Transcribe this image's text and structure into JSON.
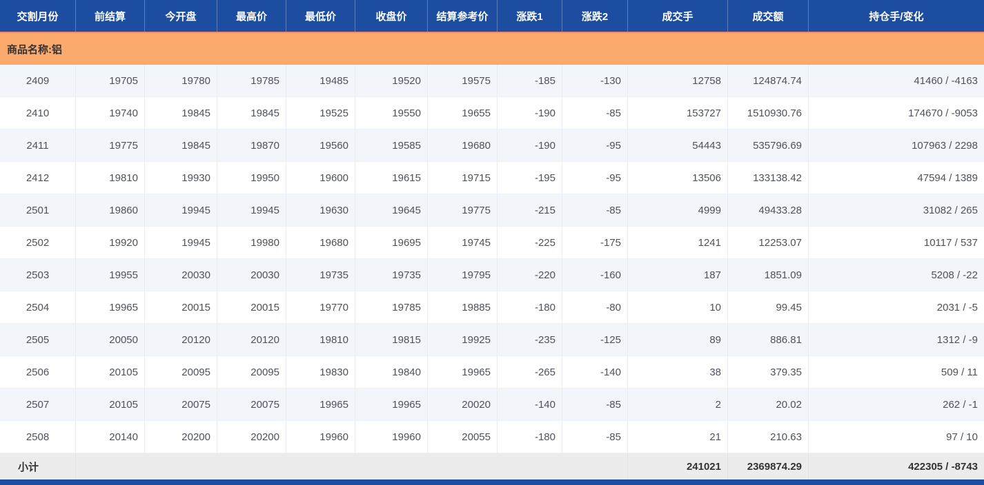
{
  "colors": {
    "header_bg": "#1d4da0",
    "header_divider": "rgba(255,255,255,0.28)",
    "header_text": "#ffffff",
    "banner_bg": "#fba96c",
    "banner_top_border": "#f28b6e",
    "row_odd_bg": "#f2f5fa",
    "row_even_bg": "#ffffff",
    "cell_divider": "#e9ecf2",
    "subtotal_bg": "#ececec",
    "footer_bar_bg": "#1d4da0",
    "data_text": "#4d525b",
    "strong_text": "#333333"
  },
  "table": {
    "columns": [
      {
        "key": "month",
        "label": "交割月份",
        "align": "center"
      },
      {
        "key": "prev_settlement",
        "label": "前结算",
        "align": "right"
      },
      {
        "key": "open",
        "label": "今开盘",
        "align": "right"
      },
      {
        "key": "high",
        "label": "最高价",
        "align": "right"
      },
      {
        "key": "low",
        "label": "最低价",
        "align": "right"
      },
      {
        "key": "close",
        "label": "收盘价",
        "align": "right"
      },
      {
        "key": "settlement_ref",
        "label": "结算参考价",
        "align": "right"
      },
      {
        "key": "change1",
        "label": "涨跌1",
        "align": "right"
      },
      {
        "key": "change2",
        "label": "涨跌2",
        "align": "right"
      },
      {
        "key": "volume",
        "label": "成交手",
        "align": "right"
      },
      {
        "key": "turnover",
        "label": "成交额",
        "align": "right"
      },
      {
        "key": "open_interest",
        "label": "持仓手/变化",
        "align": "right"
      }
    ],
    "banner": {
      "label": "商品名称:铝"
    },
    "rows": [
      {
        "month": "2409",
        "prev_settlement": "19705",
        "open": "19780",
        "high": "19785",
        "low": "19485",
        "close": "19520",
        "settlement_ref": "19575",
        "change1": "-185",
        "change2": "-130",
        "volume": "12758",
        "turnover": "124874.74",
        "open_interest": "41460 / -4163"
      },
      {
        "month": "2410",
        "prev_settlement": "19740",
        "open": "19845",
        "high": "19845",
        "low": "19525",
        "close": "19550",
        "settlement_ref": "19655",
        "change1": "-190",
        "change2": "-85",
        "volume": "153727",
        "turnover": "1510930.76",
        "open_interest": "174670 / -9053"
      },
      {
        "month": "2411",
        "prev_settlement": "19775",
        "open": "19845",
        "high": "19870",
        "low": "19560",
        "close": "19585",
        "settlement_ref": "19680",
        "change1": "-190",
        "change2": "-95",
        "volume": "54443",
        "turnover": "535796.69",
        "open_interest": "107963 / 2298"
      },
      {
        "month": "2412",
        "prev_settlement": "19810",
        "open": "19930",
        "high": "19950",
        "low": "19600",
        "close": "19615",
        "settlement_ref": "19715",
        "change1": "-195",
        "change2": "-95",
        "volume": "13506",
        "turnover": "133138.42",
        "open_interest": "47594 / 1389"
      },
      {
        "month": "2501",
        "prev_settlement": "19860",
        "open": "19945",
        "high": "19945",
        "low": "19630",
        "close": "19645",
        "settlement_ref": "19775",
        "change1": "-215",
        "change2": "-85",
        "volume": "4999",
        "turnover": "49433.28",
        "open_interest": "31082 / 265"
      },
      {
        "month": "2502",
        "prev_settlement": "19920",
        "open": "19945",
        "high": "19980",
        "low": "19680",
        "close": "19695",
        "settlement_ref": "19745",
        "change1": "-225",
        "change2": "-175",
        "volume": "1241",
        "turnover": "12253.07",
        "open_interest": "10117 / 537"
      },
      {
        "month": "2503",
        "prev_settlement": "19955",
        "open": "20030",
        "high": "20030",
        "low": "19735",
        "close": "19735",
        "settlement_ref": "19795",
        "change1": "-220",
        "change2": "-160",
        "volume": "187",
        "turnover": "1851.09",
        "open_interest": "5208 / -22"
      },
      {
        "month": "2504",
        "prev_settlement": "19965",
        "open": "20015",
        "high": "20015",
        "low": "19770",
        "close": "19785",
        "settlement_ref": "19885",
        "change1": "-180",
        "change2": "-80",
        "volume": "10",
        "turnover": "99.45",
        "open_interest": "2031 / -5"
      },
      {
        "month": "2505",
        "prev_settlement": "20050",
        "open": "20120",
        "high": "20120",
        "low": "19810",
        "close": "19815",
        "settlement_ref": "19925",
        "change1": "-235",
        "change2": "-125",
        "volume": "89",
        "turnover": "886.81",
        "open_interest": "1312 / -9"
      },
      {
        "month": "2506",
        "prev_settlement": "20105",
        "open": "20095",
        "high": "20095",
        "low": "19830",
        "close": "19840",
        "settlement_ref": "19965",
        "change1": "-265",
        "change2": "-140",
        "volume": "38",
        "turnover": "379.35",
        "open_interest": "509 / 11"
      },
      {
        "month": "2507",
        "prev_settlement": "20105",
        "open": "20075",
        "high": "20075",
        "low": "19965",
        "close": "19965",
        "settlement_ref": "20020",
        "change1": "-140",
        "change2": "-85",
        "volume": "2",
        "turnover": "20.02",
        "open_interest": "262 / -1"
      },
      {
        "month": "2508",
        "prev_settlement": "20140",
        "open": "20200",
        "high": "20200",
        "low": "19960",
        "close": "19960",
        "settlement_ref": "20055",
        "change1": "-180",
        "change2": "-85",
        "volume": "21",
        "turnover": "210.63",
        "open_interest": "97 / 10"
      }
    ],
    "subtotal": {
      "label": "小计",
      "volume": "241021",
      "turnover": "2369874.29",
      "open_interest": "422305 / -8743"
    }
  }
}
